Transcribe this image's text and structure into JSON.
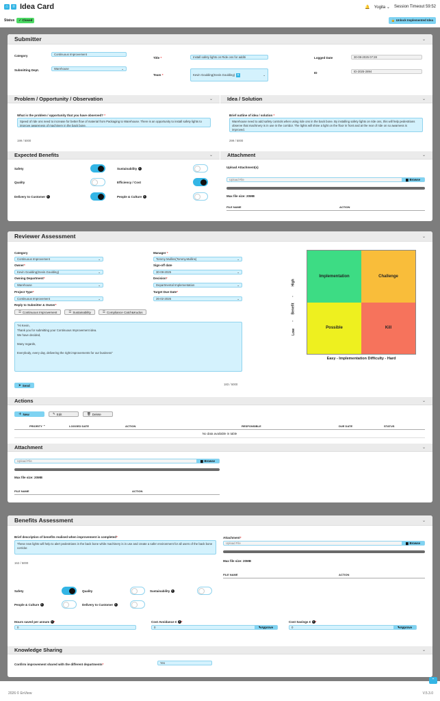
{
  "header": {
    "title": "Idea Card",
    "user": "Yogita",
    "session": "Session Timeout 59:52"
  },
  "status": {
    "label": "Status",
    "value": "Closed",
    "unlock": "Unlock Implemented Idea"
  },
  "submitter": {
    "title": "Submitter",
    "category_label": "Category",
    "category": "Continuous Improvement",
    "dept_label": "Submitting Dept.",
    "dept": "Warehouse",
    "title_label": "Title",
    "title_value": "Install safety lights on Ride ons for additi",
    "team_label": "Team",
    "team": "Kevin Goulding(Kevin.Goulding)",
    "logged_label": "Logged Date",
    "logged": "30-08-2025 07:28",
    "id_label": "ID",
    "id": "ID-2025-2894"
  },
  "problem": {
    "title": "Problem / Opportunity / Observation",
    "question": "What is the problem / opportunity that you have observed?",
    "text": "Speed of ride ons need to increase for better flow of material from Packaging to Warehouse. There is an opportunity to install safety lights to improve awareness of machinery in the back bone.",
    "count": "199 / 5000"
  },
  "solution": {
    "title": "Idea / Solution",
    "question": "Brief outline of idea / solution",
    "text": "Warehouse need to add safety controls when using ride ons in the back bone. By installing safety lights on ride ons, this will help pedestrians observe that  machinery is in use in the corridor. The lights will shine a light on the floor in front and at the rear of ride on so awarness is improved.",
    "count": "299 / 5000"
  },
  "benefits": {
    "title": "Expected Benefits",
    "safety": "Safety",
    "quality": "Quality",
    "delivery": "Delivery to Customer",
    "sustainability": "Sustainability",
    "efficiency": "Efficiency / Cost",
    "people": "People & Culture"
  },
  "attachment": {
    "title": "Attachment",
    "upload_label": "Upload Attachment(s)",
    "placeholder": "Upload File",
    "browse": "Browse",
    "max": "Max file size: 20MB",
    "col_file": "FILE NAME",
    "col_action": "ACTION"
  },
  "reviewer": {
    "title": "Reviewer Assessment",
    "category_label": "Category",
    "category": "Continuous Improvement",
    "owner_label": "Owner",
    "owner": "Kevin Goulding(Kevin.Goulding)",
    "owning_label": "Owning Department",
    "owning": "Warehouse",
    "ptype_label": "Project Type",
    "ptype": "Continuous Improvement",
    "manager_label": "Manager",
    "manager": "Tommy Mullins(Tommy.Mullins)",
    "signoff_label": "Sign-off date",
    "signoff": "30-08-2025",
    "decision_label": "Decision",
    "decision": "Departmental Implementation",
    "target_label": "Target Due Date",
    "target": "26-02-2026",
    "reply_label": "Reply to Submitter & Owner",
    "reply_btn1": "Continuous Improvement",
    "reply_btn2": "Sustainability",
    "reply_btn3": "Compliance Catch&Kudos",
    "message_lines": [
      "\"Hi Kevin,",
      "Thank you for submitting your Continuous Improvement idea.",
      "We have decided,",
      "Many regards,",
      "Everybody, every day, delivering the right improvements for our business\""
    ],
    "count": "183 / 5000",
    "send": "Send"
  },
  "matrix": {
    "q1": "Implementation",
    "q2": "Challenge",
    "q3": "Possible",
    "q4": "Kill",
    "y_high": "High",
    "y_mid": "Benefit",
    "y_low": "Low",
    "y_dash1": "-",
    "y_dash2": "-",
    "xaxis": "Easy - Implementation Difficulty - Hard",
    "colors": {
      "implementation": "#3ddc84",
      "challenge": "#f9bd3a",
      "possible": "#eef01f",
      "kill": "#f6735c"
    }
  },
  "actions": {
    "title": "Actions",
    "new": "New",
    "edit": "Edit",
    "delete": "Delete",
    "cols": [
      "PRIORITY",
      "LOGGED DATE",
      "ACTION",
      "RESPONSIBLE",
      "DUE DATE",
      "STATUS"
    ],
    "empty": "No data available in table"
  },
  "attachment2": {
    "title": "Attachment",
    "placeholder": "Upload File",
    "browse": "Browse",
    "max": "Max file size: 20MB",
    "col_file": "FILE NAME",
    "col_action": "ACTION"
  },
  "benefitsAssess": {
    "title": "Benefits Assessment",
    "desc_label": "Brief description of benefits realised when improvement is completed",
    "desc": "These new lights will help to alert pedestrians in the back bone while machinery is in use and create a safer environment for all users of the back bone corridor.",
    "count": "162 / 5000",
    "att_label": "Attachment",
    "placeholder": "Upload File",
    "browse": "Browse",
    "max": "Max file size: 20MB",
    "col_file": "FILE NAME",
    "col_action": "ACTION",
    "safety": "Safety",
    "quality": "Quality",
    "sustainability": "Sustainability",
    "people": "People & Culture",
    "delivery": "Delivery to Customer",
    "hours_label": "Hours saved per annum",
    "hours": "0",
    "avoid_label": "Cost Avoidance €",
    "avoid": "0",
    "savings_label": "Cost Savings €",
    "savings": "0",
    "approve": "Approve"
  },
  "knowledge": {
    "title": "Knowledge Sharing",
    "label": "Confirm improvement shared with the different departments",
    "value": "Yes"
  },
  "footer": {
    "copy": "2026 © EnView",
    "version": "V.5.3.0"
  }
}
